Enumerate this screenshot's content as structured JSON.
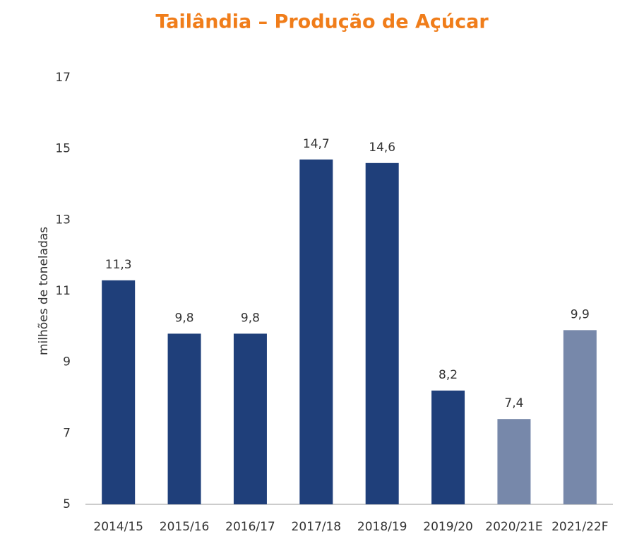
{
  "chart_data": {
    "type": "bar",
    "title": "Tailândia – Produção de Açúcar",
    "y_label": "milhões de toneladas",
    "categories": [
      "2014/15",
      "2015/16",
      "2016/17",
      "2017/18",
      "2018/19",
      "2019/20",
      "2020/21E",
      "2021/22F"
    ],
    "values": [
      11.3,
      9.8,
      9.8,
      14.7,
      14.6,
      8.2,
      7.4,
      9.9
    ],
    "value_labels": [
      "11,3",
      "9,8",
      "9,8",
      "14,7",
      "14,6",
      "8,2",
      "7,4",
      "9,9"
    ],
    "colors": [
      "#1f3f7a",
      "#1f3f7a",
      "#1f3f7a",
      "#1f3f7a",
      "#1f3f7a",
      "#1f3f7a",
      "#7788aa",
      "#7788aa"
    ],
    "ylim": [
      5,
      17
    ],
    "yticks": [
      5,
      7,
      9,
      11,
      13,
      15,
      17
    ],
    "grid": false
  }
}
